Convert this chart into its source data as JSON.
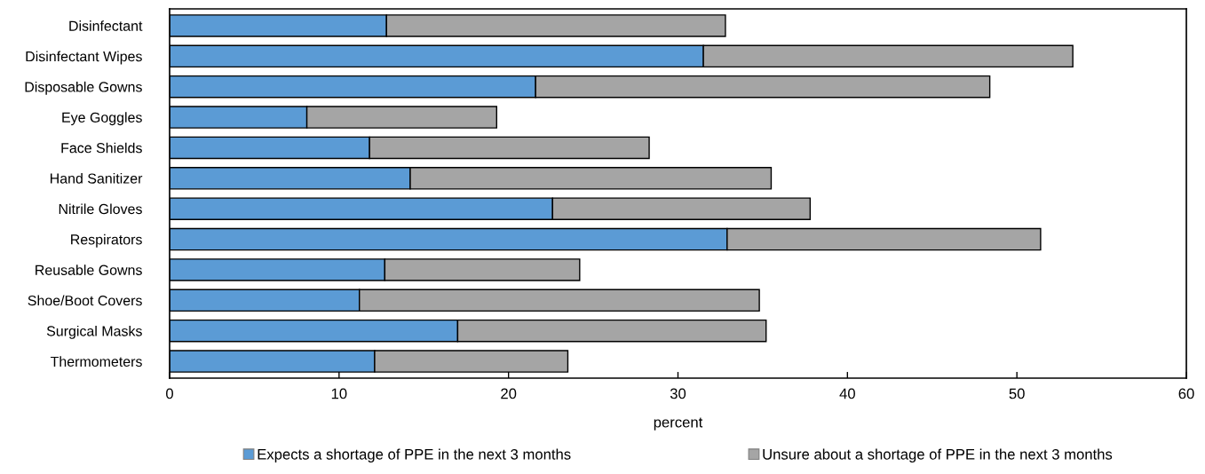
{
  "chart_data": {
    "type": "bar",
    "orientation": "horizontal",
    "stacked": true,
    "xlabel": "percent",
    "categories": [
      "Disinfectant",
      "Disinfectant Wipes",
      "Disposable Gowns",
      "Eye Goggles",
      "Face Shields",
      "Hand Sanitizer",
      "Nitrile Gloves",
      "Respirators",
      "Reusable Gowns",
      "Shoe/Boot Covers",
      "Surgical Masks",
      "Thermometers"
    ],
    "series": [
      {
        "name": "Expects a shortage of PPE in the next 3 months",
        "color": "#5b9bd5",
        "values": [
          12.8,
          31.5,
          21.6,
          8.1,
          11.8,
          14.2,
          22.6,
          32.9,
          12.7,
          11.2,
          17.0,
          12.1
        ]
      },
      {
        "name": "Unsure about a shortage of PPE in the next 3 months",
        "color": "#a5a5a5",
        "values": [
          20.0,
          21.8,
          26.8,
          11.2,
          16.5,
          21.3,
          15.2,
          18.5,
          11.5,
          23.6,
          18.2,
          11.4
        ]
      }
    ],
    "xlim": [
      0,
      60
    ],
    "xticks": [
      0,
      10,
      20,
      30,
      40,
      50,
      60
    ],
    "grid": false,
    "legend": "bottom"
  }
}
